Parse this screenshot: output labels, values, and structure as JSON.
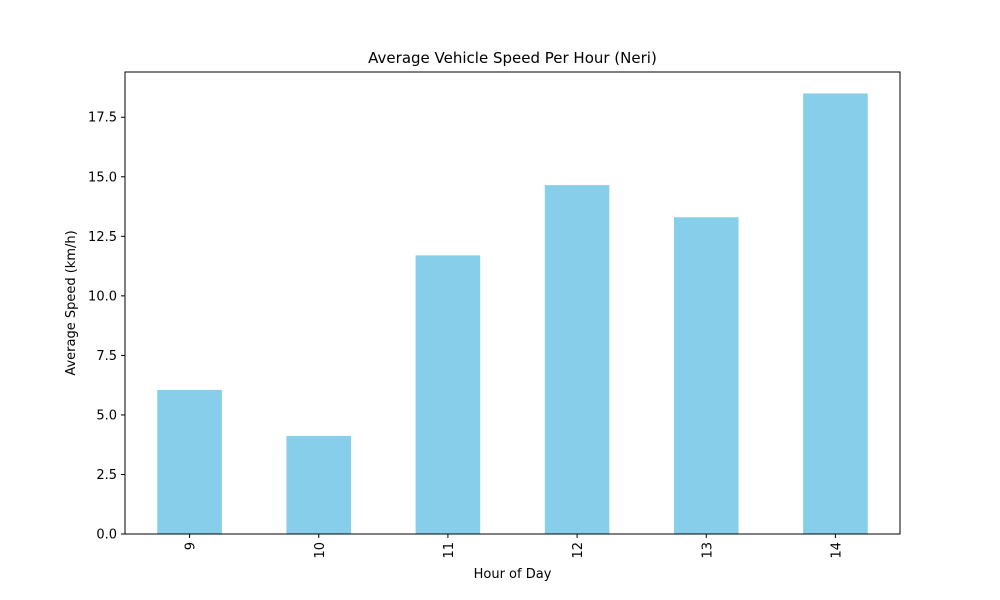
{
  "chart_data": {
    "type": "bar",
    "title": "Average Vehicle Speed Per Hour (Neri)",
    "xlabel": "Hour of Day",
    "ylabel": "Average Speed (km/h)",
    "categories": [
      "9",
      "10",
      "11",
      "12",
      "13",
      "14"
    ],
    "values": [
      6.05,
      4.12,
      11.7,
      14.65,
      13.3,
      18.5
    ],
    "ylim": [
      0,
      19.4
    ],
    "yticks": [
      "0.0",
      "2.5",
      "5.0",
      "7.5",
      "10.0",
      "12.5",
      "15.0",
      "17.5"
    ],
    "bar_color": "#87ceeb",
    "grid": false,
    "x_tick_rotation": "vertical"
  }
}
